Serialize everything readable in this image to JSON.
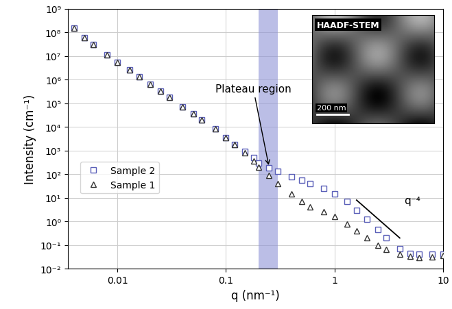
{
  "chart_data": {
    "type": "scatter",
    "x_label": "q (nm⁻¹)",
    "y_label": "Intensity (cm⁻¹)",
    "log": true,
    "grid": true,
    "legend": "center left",
    "xlim": [
      0.0035,
      10
    ],
    "ylim": [
      0.01,
      1000000000
    ],
    "xticks": [
      0.01,
      0.1,
      1,
      10
    ],
    "yticks": [
      {
        "value": 0.01,
        "label": "10⁻²"
      },
      {
        "value": 0.1,
        "label": "10⁻¹"
      },
      {
        "value": 1,
        "label": "10⁰"
      },
      {
        "value": 10,
        "label": "10¹"
      },
      {
        "value": 100,
        "label": "10²"
      },
      {
        "value": 1000,
        "label": "10³"
      },
      {
        "value": 10000,
        "label": "10⁴"
      },
      {
        "value": 100000,
        "label": "10⁵"
      },
      {
        "value": 1000000,
        "label": "10⁶"
      },
      {
        "value": 10000000,
        "label": "10⁷"
      },
      {
        "value": 100000000,
        "label": "10⁸"
      },
      {
        "value": 1000000000,
        "label": "10⁹"
      }
    ],
    "series": [
      {
        "name": "Sample 2",
        "color": "#5a5fb8",
        "marker": "square",
        "x": [
          0.004,
          0.005,
          0.006,
          0.008,
          0.01,
          0.013,
          0.016,
          0.02,
          0.025,
          0.03,
          0.04,
          0.05,
          0.06,
          0.08,
          0.1,
          0.12,
          0.15,
          0.18,
          0.2,
          0.25,
          0.3,
          0.4,
          0.5,
          0.6,
          0.8,
          1,
          1.3,
          1.6,
          2,
          2.5,
          3,
          4,
          5,
          6,
          8,
          10
        ],
        "values": [
          150000000,
          60000000,
          30000000,
          11000000,
          5500000,
          2500000,
          1300000,
          650000,
          320000,
          180000,
          70000,
          35000,
          20000,
          8000,
          3500,
          1800,
          900,
          500,
          300,
          180,
          130,
          80,
          55,
          40,
          25,
          15,
          7,
          3,
          1.2,
          0.45,
          0.2,
          0.07,
          0.045,
          0.04,
          0.04,
          0.04
        ]
      },
      {
        "name": "Sample 1",
        "color": "#333333",
        "marker": "triangle",
        "x": [
          0.004,
          0.005,
          0.006,
          0.008,
          0.01,
          0.013,
          0.016,
          0.02,
          0.025,
          0.03,
          0.04,
          0.05,
          0.06,
          0.08,
          0.1,
          0.12,
          0.15,
          0.18,
          0.2,
          0.25,
          0.3,
          0.4,
          0.5,
          0.6,
          0.8,
          1,
          1.3,
          1.6,
          2,
          2.5,
          3,
          4,
          5,
          6,
          8,
          10
        ],
        "values": [
          150000000,
          60000000,
          30000000,
          11000000,
          5500000,
          2500000,
          1300000,
          650000,
          320000,
          180000,
          70000,
          35000,
          20000,
          8000,
          3500,
          1800,
          800,
          350,
          200,
          90,
          40,
          15,
          7,
          4,
          2.5,
          1.6,
          0.8,
          0.4,
          0.2,
          0.1,
          0.065,
          0.04,
          0.033,
          0.03,
          0.032,
          0.035
        ]
      }
    ],
    "band": {
      "x": [
        0.2,
        0.3
      ],
      "color": "#8f94d6"
    },
    "annotation": {
      "text": "Plateau region",
      "text_x": 0.08,
      "text_y": 300000,
      "point_x": 0.25,
      "point_y": 200
    },
    "guide_line": {
      "label": "q⁻⁴",
      "x": [
        1.6,
        4
      ],
      "y": [
        8,
        0.2
      ],
      "color": "#000000"
    },
    "inset": {
      "label": "HAADF-STEM",
      "scale_bar": "200 nm"
    }
  }
}
